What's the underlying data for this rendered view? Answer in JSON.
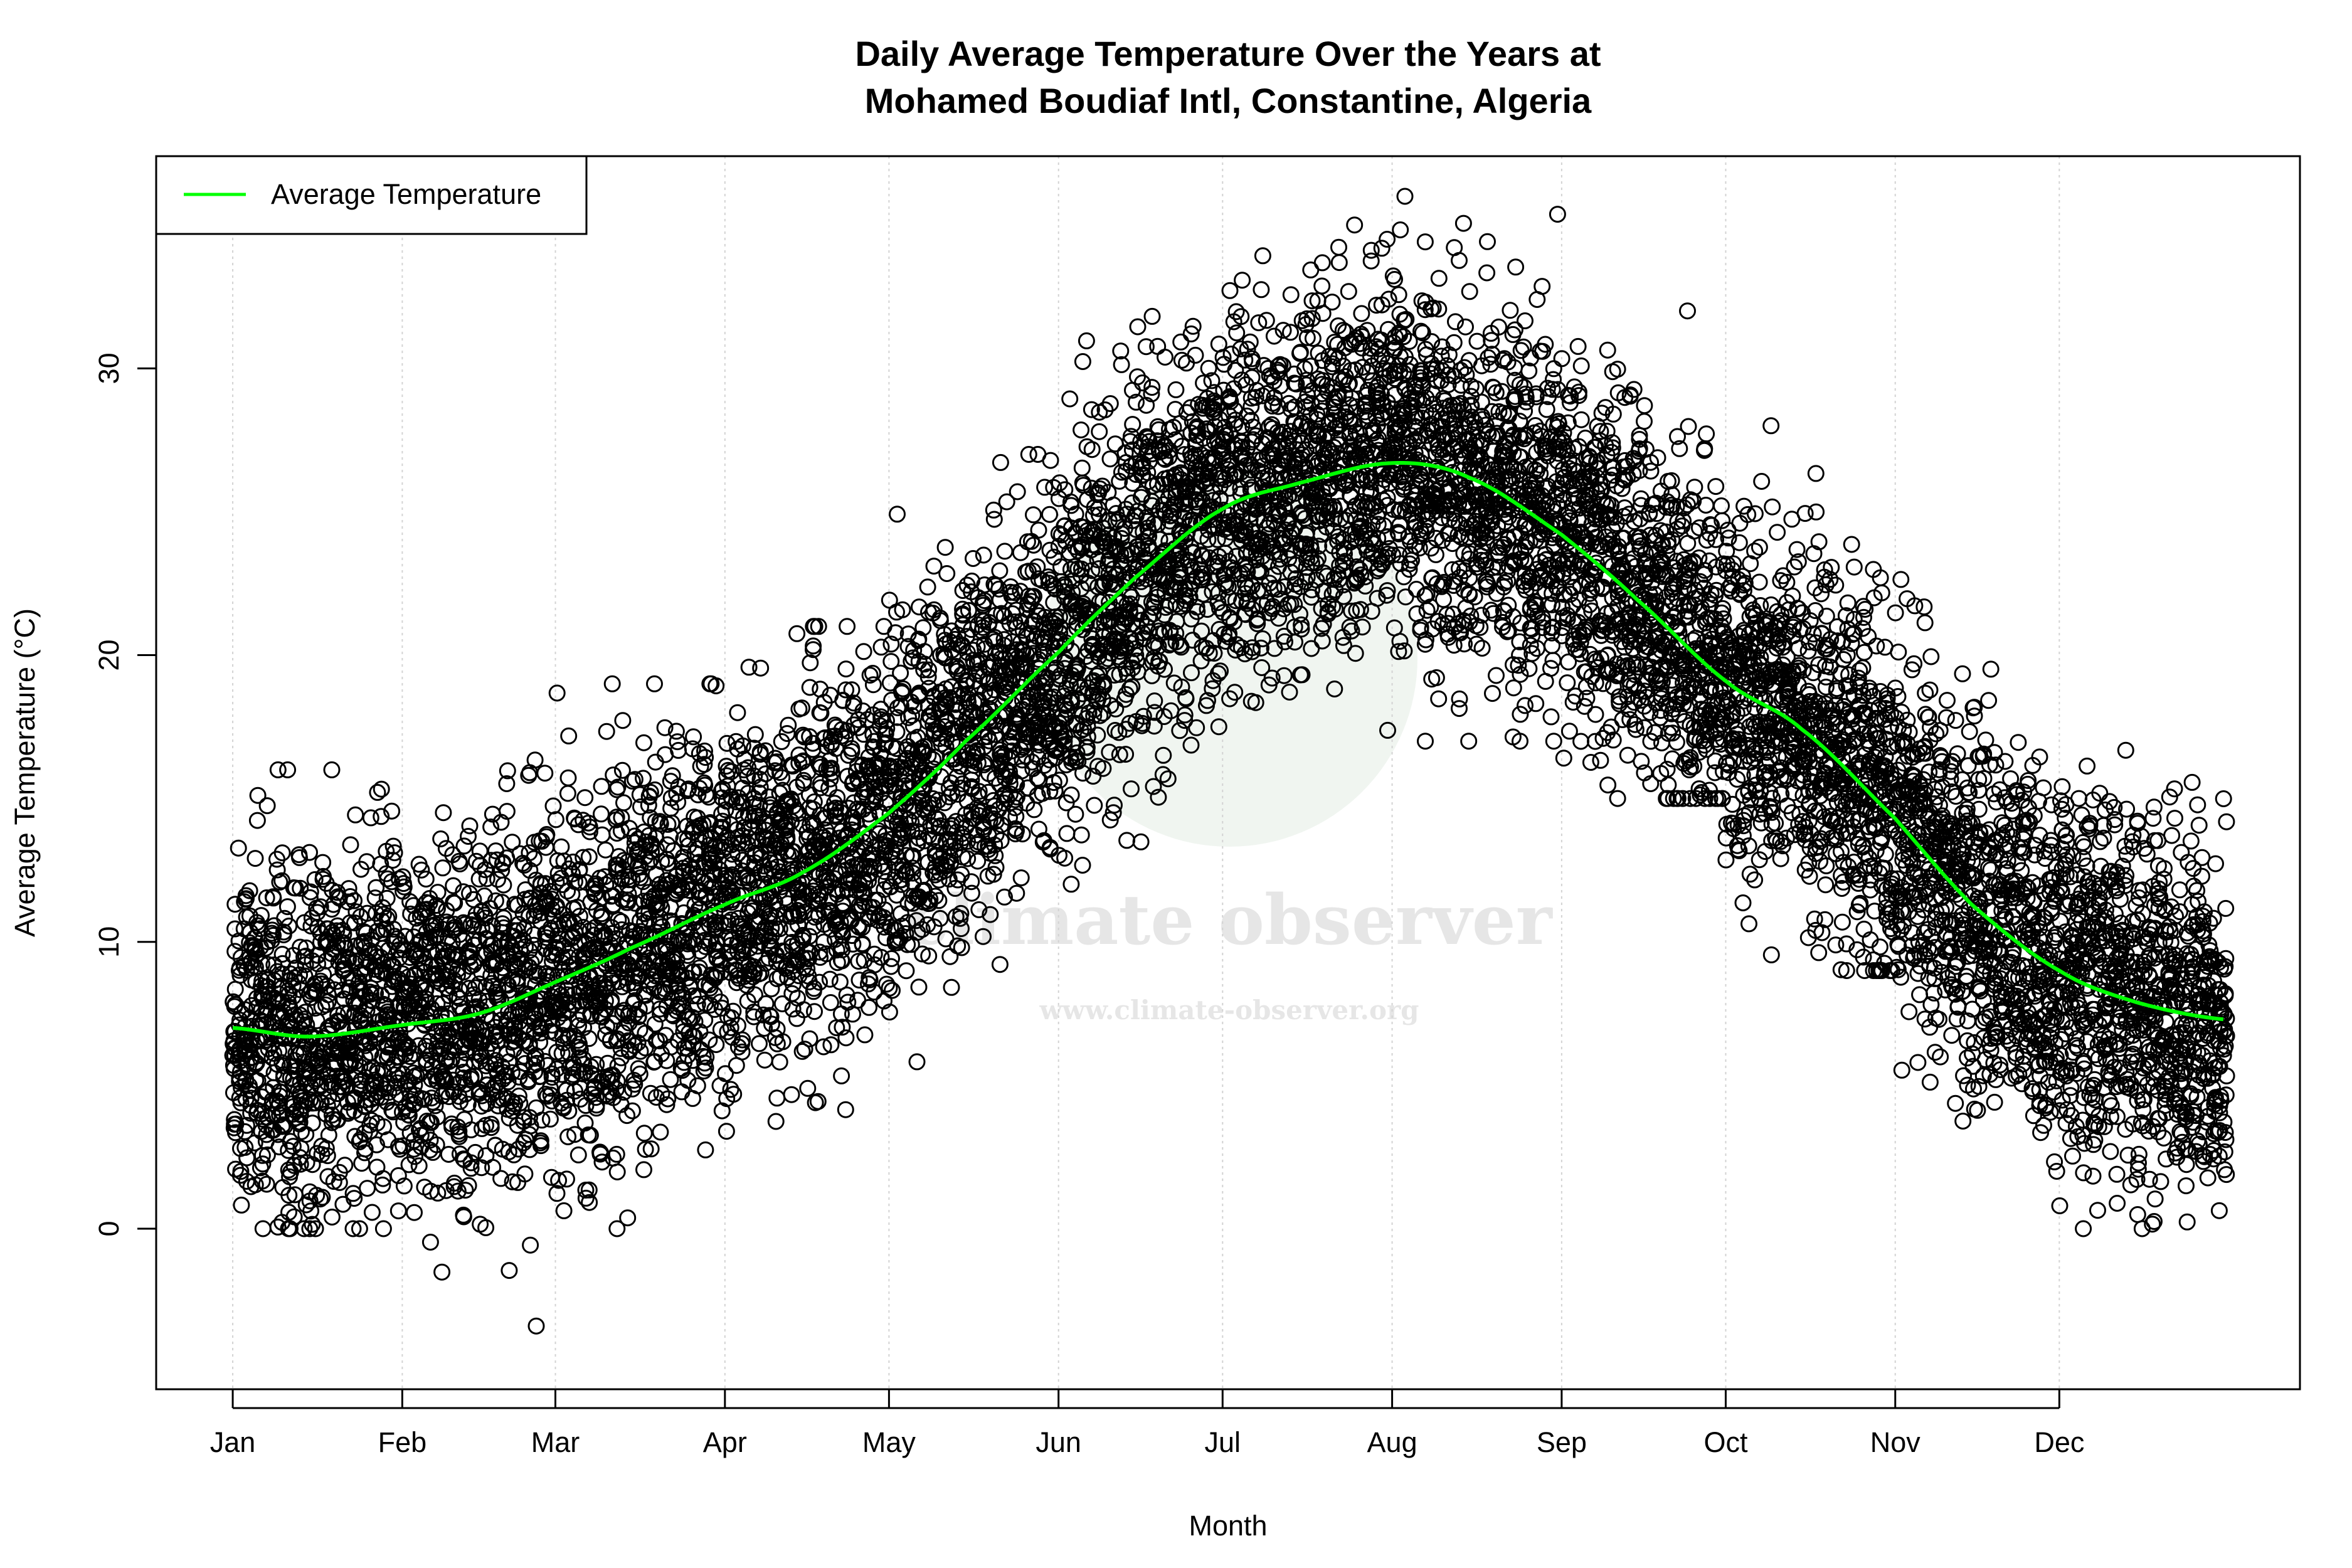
{
  "chart_data": {
    "type": "scatter",
    "title": [
      "Daily Average Temperature Over the Years at",
      "Mohamed Boudiaf Intl, Constantine, Algeria"
    ],
    "xlabel": "Month",
    "ylabel": "Average Temperature (°C)",
    "x_tick_labels": [
      "Jan",
      "Feb",
      "Mar",
      "Apr",
      "May",
      "Jun",
      "Jul",
      "Aug",
      "Sep",
      "Oct",
      "Nov",
      "Dec"
    ],
    "x_tick_days": [
      1,
      32,
      60,
      91,
      121,
      152,
      182,
      213,
      244,
      274,
      305,
      335
    ],
    "y_ticks": [
      0,
      10,
      20,
      30
    ],
    "ylim": [
      -5.6,
      37.4
    ],
    "xlim": [
      -13,
      379
    ],
    "grid": "vertical dotted at month starts",
    "legend": {
      "position": "top-left",
      "entries": [
        {
          "label": "Average Temperature",
          "color": "#00ff00"
        }
      ]
    },
    "smooth_curve": {
      "name": "Average Temperature",
      "color": "#00ff00",
      "day": [
        1,
        15,
        32,
        46,
        60,
        74,
        91,
        105,
        121,
        135,
        152,
        166,
        182,
        196,
        213,
        227,
        244,
        258,
        274,
        288,
        305,
        319,
        335,
        349,
        365
      ],
      "value": [
        7.0,
        6.7,
        7.1,
        7.5,
        8.6,
        9.8,
        11.3,
        12.4,
        14.5,
        17.0,
        20.1,
        22.7,
        25.1,
        26.0,
        26.7,
        26.2,
        24.2,
        21.9,
        19.1,
        17.4,
        14.3,
        11.3,
        9.0,
        7.9,
        7.3
      ]
    },
    "daily_observations_range_by_month": {
      "min": [
        0,
        -4,
        0,
        1,
        5,
        10,
        15,
        17,
        15,
        9,
        2,
        0
      ],
      "max": [
        16,
        18,
        19,
        21,
        27,
        32,
        35,
        36,
        33,
        28,
        26,
        18
      ]
    },
    "point_style": "open black circles"
  },
  "watermark": {
    "name": "climate observer",
    "url": "www.climate-observer.org"
  }
}
